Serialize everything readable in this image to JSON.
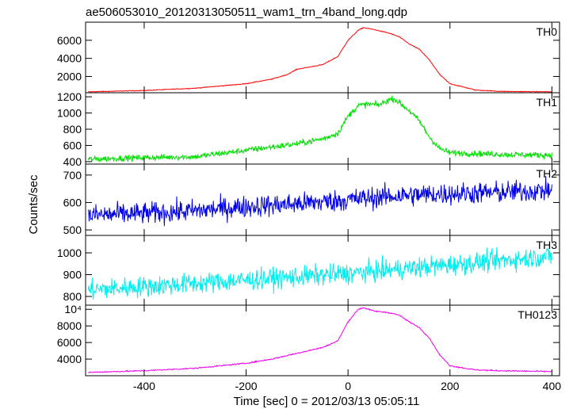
{
  "title": "ae506053010_20120313050511_wam1_trn_4band_long.qdp",
  "chart_data": {
    "type": "line",
    "title": "ae506053010_20120313050511_wam1_trn_4band_long.qdp",
    "xlabel": "Time [sec] 0 = 2012/03/13 05:05:11",
    "ylabel": "Counts/sec",
    "xlim": [
      -515,
      415
    ],
    "x_ticks": [
      -400,
      -200,
      0,
      200,
      400
    ],
    "x_tick_labels": [
      "-400",
      "-200",
      "0",
      "200",
      "400"
    ],
    "grid": false,
    "panels": [
      {
        "name": "TH0",
        "color": "#ff0000",
        "ylim": [
          200,
          8000
        ],
        "y_ticks": [
          2000,
          4000,
          6000
        ],
        "y_tick_labels": [
          "2000",
          "4000",
          "6000"
        ],
        "noise": 40,
        "x": [
          -510,
          -400,
          -300,
          -200,
          -150,
          -120,
          -100,
          -50,
          -20,
          0,
          20,
          30,
          50,
          80,
          100,
          120,
          140,
          160,
          180,
          200,
          250,
          300,
          400
        ],
        "y": [
          300,
          450,
          700,
          1200,
          1700,
          2200,
          2800,
          3300,
          4200,
          6000,
          7100,
          7400,
          7200,
          6800,
          6400,
          5600,
          5000,
          3800,
          2200,
          1200,
          500,
          350,
          300
        ]
      },
      {
        "name": "TH1",
        "color": "#00e000",
        "ylim": [
          370,
          1250
        ],
        "y_ticks": [
          400,
          600,
          800,
          1000,
          1200
        ],
        "y_tick_labels": [
          "400",
          "600",
          "800",
          "1000",
          "1200"
        ],
        "noise": 35,
        "x": [
          -510,
          -400,
          -300,
          -200,
          -100,
          -50,
          -20,
          0,
          20,
          40,
          60,
          80,
          90,
          100,
          120,
          140,
          160,
          180,
          200,
          300,
          400
        ],
        "y": [
          430,
          450,
          460,
          540,
          620,
          680,
          750,
          960,
          1090,
          1110,
          1100,
          1160,
          1180,
          1130,
          1030,
          900,
          700,
          560,
          510,
          490,
          480
        ]
      },
      {
        "name": "TH2",
        "color": "#0000ee",
        "ylim": [
          480,
          740
        ],
        "y_ticks": [
          500,
          600,
          700
        ],
        "y_tick_labels": [
          "500",
          "600",
          "700"
        ],
        "noise": 38,
        "x": [
          -510,
          -400,
          -300,
          -200,
          -100,
          0,
          100,
          200,
          300,
          400
        ],
        "y": [
          553,
          560,
          570,
          585,
          595,
          610,
          625,
          632,
          637,
          645
        ]
      },
      {
        "name": "TH3",
        "color": "#00eeee",
        "ylim": [
          760,
          1080
        ],
        "y_ticks": [
          800,
          900,
          1000
        ],
        "y_tick_labels": [
          "800",
          "900",
          "1000"
        ],
        "noise": 45,
        "x": [
          -510,
          -400,
          -300,
          -200,
          -100,
          0,
          100,
          200,
          300,
          400
        ],
        "y": [
          830,
          845,
          860,
          875,
          890,
          905,
          925,
          945,
          965,
          985
        ]
      },
      {
        "name": "TH0123",
        "color": "#ee00ee",
        "ylim": [
          2000,
          10500
        ],
        "y_ticks": [
          4000,
          6000,
          8000,
          10000
        ],
        "y_tick_labels": [
          "4000",
          "6000",
          "8000",
          "10⁴"
        ],
        "noise": 70,
        "x": [
          -510,
          -400,
          -300,
          -200,
          -150,
          -100,
          -50,
          -20,
          0,
          20,
          30,
          50,
          80,
          100,
          120,
          140,
          160,
          180,
          200,
          250,
          300,
          400
        ],
        "y": [
          2400,
          2600,
          2900,
          3500,
          4000,
          4700,
          5400,
          6200,
          8500,
          10000,
          10200,
          9800,
          9600,
          9300,
          8500,
          7800,
          6500,
          4500,
          3200,
          2700,
          2600,
          2500
        ]
      }
    ]
  }
}
